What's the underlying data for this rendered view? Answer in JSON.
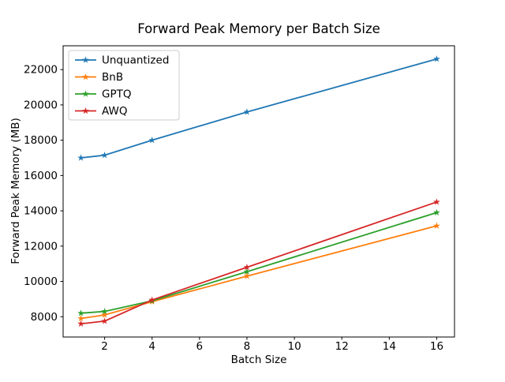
{
  "chart_data": {
    "type": "line",
    "title": "Forward Peak Memory per Batch Size",
    "xlabel": "Batch Size",
    "ylabel": "Forward Peak Memory (MB)",
    "x": [
      1,
      2,
      4,
      8,
      16
    ],
    "series": [
      {
        "name": "Unquantized",
        "color": "#1f77b4",
        "values": [
          17000,
          17150,
          18000,
          19600,
          22600
        ]
      },
      {
        "name": "BnB",
        "color": "#ff7f0e",
        "values": [
          7900,
          8100,
          8850,
          10300,
          13150
        ]
      },
      {
        "name": "GPTQ",
        "color": "#2ca02c",
        "values": [
          8200,
          8300,
          8900,
          10550,
          13900
        ]
      },
      {
        "name": "AWQ",
        "color": "#d62728",
        "values": [
          7600,
          7750,
          8950,
          10800,
          14500
        ]
      }
    ],
    "xlim": [
      0.25,
      16.75
    ],
    "ylim": [
      6850,
      23350
    ],
    "xticks": [
      2,
      4,
      6,
      8,
      10,
      12,
      14,
      16
    ],
    "yticks": [
      8000,
      10000,
      12000,
      14000,
      16000,
      18000,
      20000,
      22000
    ],
    "marker": "star",
    "grid": false,
    "legend_position": "upper left",
    "frame_color": "#000000",
    "legend_edge_color": "#cccccc",
    "background_color": "#ffffff"
  }
}
